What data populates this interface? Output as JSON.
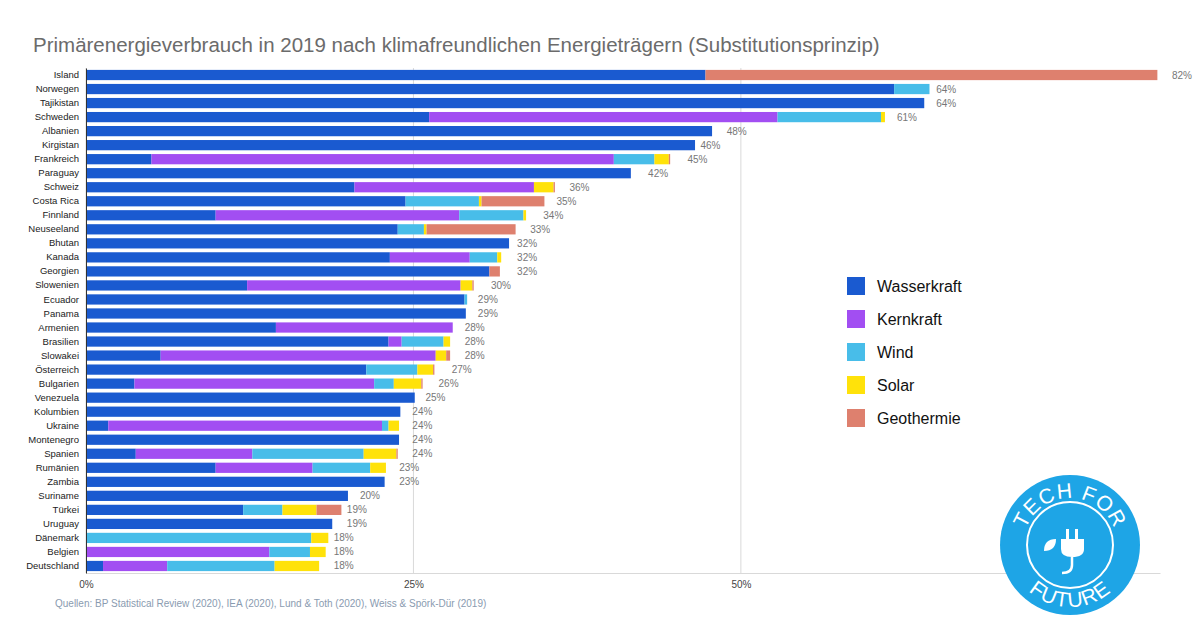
{
  "chart_data": {
    "type": "bar",
    "title": "Primärenergieverbrauch in 2019 nach klimafreundlichen Energieträgern (Substitutionsprinzip)",
    "orientation": "horizontal",
    "stacked": true,
    "grid": true,
    "legend": "right",
    "categories": [
      "Island",
      "Norwegen",
      "Tajikistan",
      "Schweden",
      "Albanien",
      "Kirgistan",
      "Frankreich",
      "Paraguay",
      "Schweiz",
      "Costa Rica",
      "Finnland",
      "Neuseeland",
      "Bhutan",
      "Kanada",
      "Georgien",
      "Slowenien",
      "Ecuador",
      "Panama",
      "Armenien",
      "Brasilien",
      "Slowakei",
      "Österreich",
      "Bulgarien",
      "Venezuela",
      "Kolumbien",
      "Ukraine",
      "Montenegro",
      "Spanien",
      "Rumänien",
      "Zambia",
      "Suriname",
      "Türkei",
      "Uruguay",
      "Dänemark",
      "Belgien",
      "Deutschland"
    ],
    "series": [
      {
        "name": "Wasserkraft",
        "color": "#1a5ad0",
        "values": [
          47.3,
          61.7,
          64,
          26.2,
          47.8,
          46.5,
          5,
          41.6,
          20.5,
          24.4,
          9.9,
          23.8,
          32.3,
          23.2,
          30.8,
          12.3,
          28.9,
          29,
          14.5,
          23.1,
          5.7,
          21.4,
          3.7,
          25.1,
          24,
          1.7,
          23.9,
          3.8,
          9.9,
          22.8,
          20,
          12,
          18.8,
          0,
          0,
          1.3
        ]
      },
      {
        "name": "Kernkraft",
        "color": "#a24ef2",
        "values": [
          0,
          0,
          0,
          26.6,
          0,
          0,
          35.3,
          0,
          13.7,
          0,
          18.6,
          0,
          0,
          6.1,
          0,
          16.3,
          0,
          0,
          13.5,
          1,
          21,
          0,
          18.3,
          0,
          0,
          20.9,
          0,
          8.9,
          7.4,
          0,
          0,
          0,
          0,
          0,
          14,
          4.9
        ]
      },
      {
        "name": "Wind",
        "color": "#48bde9",
        "values": [
          0,
          2.7,
          0,
          7.9,
          0,
          0,
          3.1,
          0,
          0,
          5.6,
          4.9,
          2,
          0,
          2.1,
          0,
          0,
          0.2,
          0,
          0,
          3.2,
          0,
          3.9,
          1.5,
          0,
          0,
          0.5,
          0,
          8.5,
          4.4,
          0,
          0,
          3,
          0,
          17.2,
          3.1,
          8.2
        ]
      },
      {
        "name": "Solar",
        "color": "#ffe20a",
        "values": [
          0,
          0,
          0,
          0.3,
          0,
          0,
          1.1,
          0,
          1.5,
          0.2,
          0.2,
          0.2,
          0,
          0.3,
          0,
          0.9,
          0,
          0,
          0,
          0.5,
          0.8,
          1.2,
          2.1,
          0,
          0,
          0.8,
          0,
          2.5,
          1.2,
          0,
          0,
          2.6,
          0,
          1.3,
          1.2,
          3.4
        ]
      },
      {
        "name": "Geothermie",
        "color": "#de806e",
        "values": [
          34.5,
          0,
          0,
          0,
          0,
          0,
          0.1,
          0,
          0.1,
          4.8,
          0,
          6.8,
          0,
          0,
          0.8,
          0.1,
          0,
          0,
          0,
          0,
          0.3,
          0.1,
          0.1,
          0,
          0,
          0,
          0,
          0.1,
          0,
          0,
          0,
          1.9,
          0,
          0,
          0,
          0
        ]
      }
    ],
    "totals": [
      82,
      64,
      64,
      61,
      48,
      46,
      45,
      42,
      36,
      35,
      34,
      33,
      32,
      32,
      32,
      30,
      29,
      29,
      28,
      28,
      28,
      27,
      26,
      25,
      24,
      24,
      24,
      24,
      23,
      23,
      20,
      19,
      19,
      18,
      18,
      18
    ],
    "total_labels": [
      "82%",
      "64%",
      "64%",
      "61%",
      "48%",
      "46%",
      "45%",
      "42%",
      "36%",
      "35%",
      "34%",
      "33%",
      "32%",
      "32%",
      "32%",
      "30%",
      "29%",
      "29%",
      "28%",
      "28%",
      "28%",
      "27%",
      "26%",
      "25%",
      "24%",
      "24%",
      "24%",
      "24%",
      "23%",
      "23%",
      "20%",
      "19%",
      "19%",
      "18%",
      "18%",
      "18%"
    ],
    "xlim": [
      0,
      82
    ],
    "xticks": [
      {
        "value": 0,
        "label": "0%"
      },
      {
        "value": 25,
        "label": "25%"
      },
      {
        "value": 50,
        "label": "50%"
      }
    ],
    "source": "Quellen: BP Statistical Review (2020), IEA (2020), Lund & Toth (2020), Weiss & Spörk-Dür (2019)",
    "logo": [
      "TECH FOR",
      "FUTURE"
    ]
  }
}
